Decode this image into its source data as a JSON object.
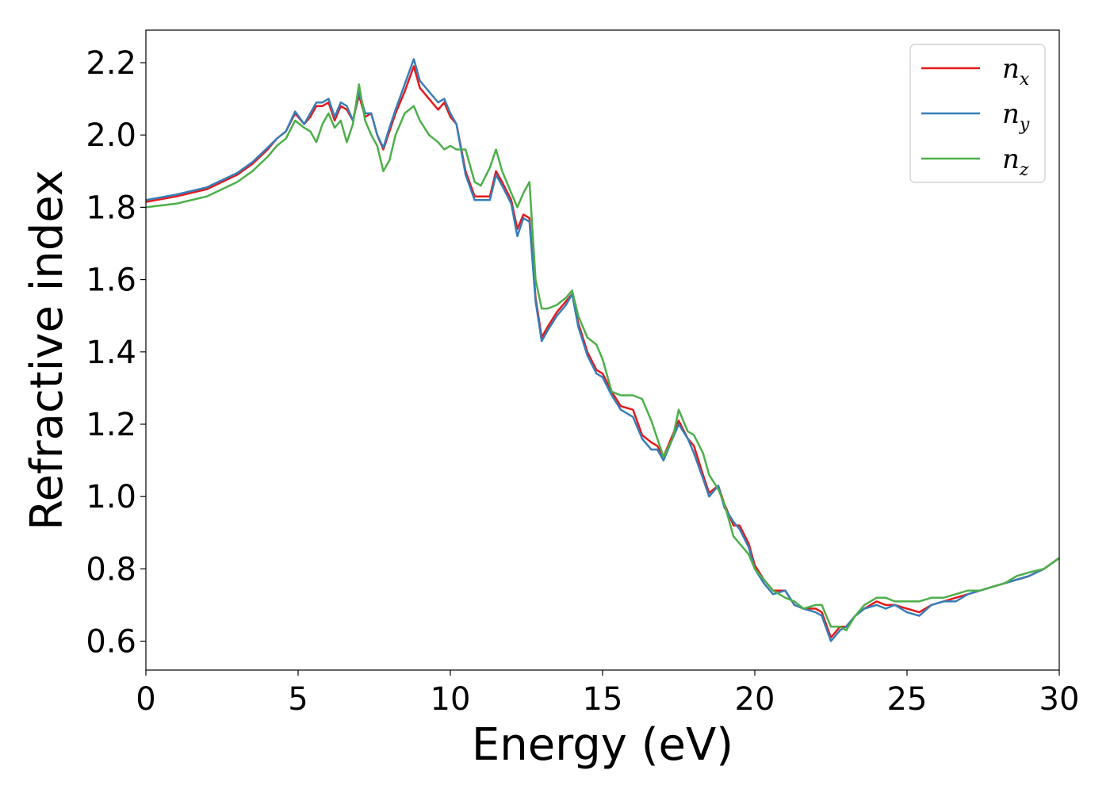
{
  "chart_data": {
    "type": "line",
    "xlabel": "Energy (eV)",
    "ylabel": "Refractive index",
    "xlim": [
      0,
      30
    ],
    "ylim": [
      0.52,
      2.29
    ],
    "xticks": [
      0,
      5,
      10,
      15,
      20,
      25,
      30
    ],
    "yticks": [
      0.6,
      0.8,
      1.0,
      1.2,
      1.4,
      1.6,
      1.8,
      2.0,
      2.2
    ],
    "grid": false,
    "legend_position": "top-right",
    "colors": {
      "nx": "#e41a1c",
      "ny": "#377eb8",
      "nz": "#4daf4a"
    },
    "series": [
      {
        "name": "n_x",
        "legend_base": "n",
        "legend_sub": "x",
        "color": "#e41a1c",
        "x": [
          0,
          1,
          2,
          3,
          3.5,
          4,
          4.3,
          4.6,
          4.9,
          5.2,
          5.4,
          5.6,
          5.8,
          6.0,
          6.2,
          6.4,
          6.6,
          6.8,
          7.0,
          7.2,
          7.4,
          7.6,
          7.8,
          8.0,
          8.2,
          8.5,
          8.8,
          9.0,
          9.3,
          9.6,
          9.8,
          10.0,
          10.2,
          10.5,
          10.8,
          11.0,
          11.3,
          11.5,
          11.7,
          12.0,
          12.2,
          12.4,
          12.6,
          12.8,
          13.0,
          13.2,
          13.5,
          13.8,
          14.0,
          14.2,
          14.5,
          14.8,
          15.0,
          15.3,
          15.6,
          16.0,
          16.3,
          16.6,
          16.8,
          17.0,
          17.3,
          17.5,
          17.8,
          18.0,
          18.3,
          18.5,
          18.8,
          19.0,
          19.3,
          19.5,
          19.8,
          20.0,
          20.3,
          20.6,
          21.0,
          21.3,
          21.6,
          22.0,
          22.2,
          22.5,
          22.8,
          23.0,
          23.3,
          23.6,
          24.0,
          24.3,
          24.6,
          25.0,
          25.4,
          25.8,
          26.2,
          26.6,
          27.0,
          27.4,
          27.8,
          28.2,
          28.6,
          29.0,
          29.5,
          30.0
        ],
        "values": [
          1.815,
          1.83,
          1.85,
          1.89,
          1.92,
          1.96,
          1.99,
          2.01,
          2.06,
          2.03,
          2.05,
          2.08,
          2.08,
          2.09,
          2.04,
          2.08,
          2.07,
          2.04,
          2.11,
          2.05,
          2.06,
          2.0,
          1.96,
          2.01,
          2.06,
          2.12,
          2.19,
          2.13,
          2.1,
          2.07,
          2.09,
          2.05,
          2.03,
          1.9,
          1.83,
          1.83,
          1.83,
          1.9,
          1.87,
          1.82,
          1.74,
          1.78,
          1.77,
          1.55,
          1.44,
          1.47,
          1.51,
          1.54,
          1.56,
          1.48,
          1.4,
          1.35,
          1.34,
          1.29,
          1.25,
          1.24,
          1.17,
          1.15,
          1.14,
          1.11,
          1.17,
          1.21,
          1.16,
          1.14,
          1.06,
          1.01,
          1.03,
          0.98,
          0.92,
          0.92,
          0.87,
          0.81,
          0.77,
          0.74,
          0.74,
          0.7,
          0.69,
          0.69,
          0.68,
          0.61,
          0.64,
          0.64,
          0.67,
          0.69,
          0.71,
          0.7,
          0.7,
          0.69,
          0.68,
          0.7,
          0.71,
          0.72,
          0.73,
          0.74,
          0.75,
          0.76,
          0.77,
          0.78,
          0.8,
          0.83
        ]
      },
      {
        "name": "n_y",
        "legend_base": "n",
        "legend_sub": "y",
        "color": "#377eb8",
        "x": [
          0,
          1,
          2,
          3,
          3.5,
          4,
          4.3,
          4.6,
          4.9,
          5.2,
          5.4,
          5.6,
          5.8,
          6.0,
          6.2,
          6.4,
          6.6,
          6.8,
          7.0,
          7.2,
          7.4,
          7.6,
          7.8,
          8.0,
          8.2,
          8.5,
          8.8,
          9.0,
          9.3,
          9.6,
          9.8,
          10.0,
          10.2,
          10.5,
          10.8,
          11.0,
          11.3,
          11.5,
          11.7,
          12.0,
          12.2,
          12.4,
          12.6,
          12.8,
          13.0,
          13.2,
          13.5,
          13.8,
          14.0,
          14.2,
          14.5,
          14.8,
          15.0,
          15.3,
          15.6,
          16.0,
          16.3,
          16.6,
          16.8,
          17.0,
          17.3,
          17.5,
          17.8,
          18.0,
          18.3,
          18.5,
          18.8,
          19.0,
          19.3,
          19.5,
          19.8,
          20.0,
          20.3,
          20.6,
          21.0,
          21.3,
          21.6,
          22.0,
          22.2,
          22.5,
          22.8,
          23.0,
          23.3,
          23.6,
          24.0,
          24.3,
          24.6,
          25.0,
          25.4,
          25.8,
          26.2,
          26.6,
          27.0,
          27.4,
          27.8,
          28.2,
          28.6,
          29.0,
          29.5,
          30.0
        ],
        "values": [
          1.82,
          1.835,
          1.855,
          1.895,
          1.925,
          1.965,
          1.99,
          2.01,
          2.065,
          2.03,
          2.06,
          2.09,
          2.09,
          2.1,
          2.05,
          2.09,
          2.08,
          2.04,
          2.12,
          2.06,
          2.06,
          2.0,
          1.965,
          2.02,
          2.07,
          2.14,
          2.21,
          2.15,
          2.12,
          2.09,
          2.1,
          2.06,
          2.03,
          1.89,
          1.82,
          1.82,
          1.82,
          1.89,
          1.86,
          1.81,
          1.72,
          1.77,
          1.76,
          1.54,
          1.43,
          1.46,
          1.5,
          1.53,
          1.56,
          1.47,
          1.39,
          1.34,
          1.33,
          1.28,
          1.24,
          1.22,
          1.16,
          1.13,
          1.13,
          1.1,
          1.16,
          1.2,
          1.16,
          1.12,
          1.05,
          1.0,
          1.03,
          0.97,
          0.93,
          0.91,
          0.86,
          0.8,
          0.76,
          0.73,
          0.74,
          0.7,
          0.69,
          0.68,
          0.67,
          0.6,
          0.63,
          0.64,
          0.67,
          0.69,
          0.7,
          0.69,
          0.7,
          0.68,
          0.67,
          0.7,
          0.71,
          0.71,
          0.73,
          0.74,
          0.75,
          0.76,
          0.77,
          0.78,
          0.8,
          0.83
        ]
      },
      {
        "name": "n_z",
        "legend_base": "n",
        "legend_sub": "z",
        "color": "#4daf4a",
        "x": [
          0,
          1,
          2,
          3,
          3.5,
          4,
          4.3,
          4.6,
          4.9,
          5.2,
          5.4,
          5.6,
          5.8,
          6.0,
          6.2,
          6.4,
          6.6,
          6.8,
          7.0,
          7.2,
          7.4,
          7.6,
          7.8,
          8.0,
          8.2,
          8.5,
          8.8,
          9.0,
          9.3,
          9.6,
          9.8,
          10.0,
          10.2,
          10.5,
          10.8,
          11.0,
          11.3,
          11.5,
          11.7,
          12.0,
          12.2,
          12.4,
          12.6,
          12.8,
          13.0,
          13.2,
          13.5,
          13.8,
          14.0,
          14.2,
          14.5,
          14.8,
          15.0,
          15.3,
          15.6,
          16.0,
          16.3,
          16.6,
          16.8,
          17.0,
          17.3,
          17.5,
          17.8,
          18.0,
          18.3,
          18.5,
          18.8,
          19.0,
          19.3,
          19.5,
          19.8,
          20.0,
          20.3,
          20.6,
          21.0,
          21.3,
          21.6,
          22.0,
          22.2,
          22.5,
          22.8,
          23.0,
          23.3,
          23.6,
          24.0,
          24.3,
          24.6,
          25.0,
          25.4,
          25.8,
          26.2,
          26.6,
          27.0,
          27.4,
          27.8,
          28.2,
          28.6,
          29.0,
          29.5,
          30.0
        ],
        "values": [
          1.8,
          1.81,
          1.83,
          1.87,
          1.9,
          1.94,
          1.97,
          1.99,
          2.04,
          2.02,
          2.01,
          1.98,
          2.03,
          2.06,
          2.02,
          2.04,
          1.98,
          2.03,
          2.14,
          2.04,
          2.0,
          1.97,
          1.9,
          1.93,
          2.0,
          2.06,
          2.08,
          2.04,
          2.0,
          1.98,
          1.96,
          1.97,
          1.96,
          1.96,
          1.87,
          1.86,
          1.91,
          1.96,
          1.9,
          1.84,
          1.8,
          1.84,
          1.87,
          1.6,
          1.52,
          1.52,
          1.53,
          1.55,
          1.57,
          1.5,
          1.44,
          1.42,
          1.38,
          1.29,
          1.28,
          1.28,
          1.27,
          1.21,
          1.16,
          1.11,
          1.16,
          1.24,
          1.18,
          1.17,
          1.12,
          1.06,
          1.02,
          0.98,
          0.89,
          0.87,
          0.84,
          0.8,
          0.77,
          0.74,
          0.72,
          0.71,
          0.69,
          0.7,
          0.7,
          0.64,
          0.64,
          0.63,
          0.67,
          0.7,
          0.72,
          0.72,
          0.71,
          0.71,
          0.71,
          0.72,
          0.72,
          0.73,
          0.74,
          0.74,
          0.75,
          0.76,
          0.78,
          0.79,
          0.8,
          0.83
        ]
      }
    ]
  }
}
